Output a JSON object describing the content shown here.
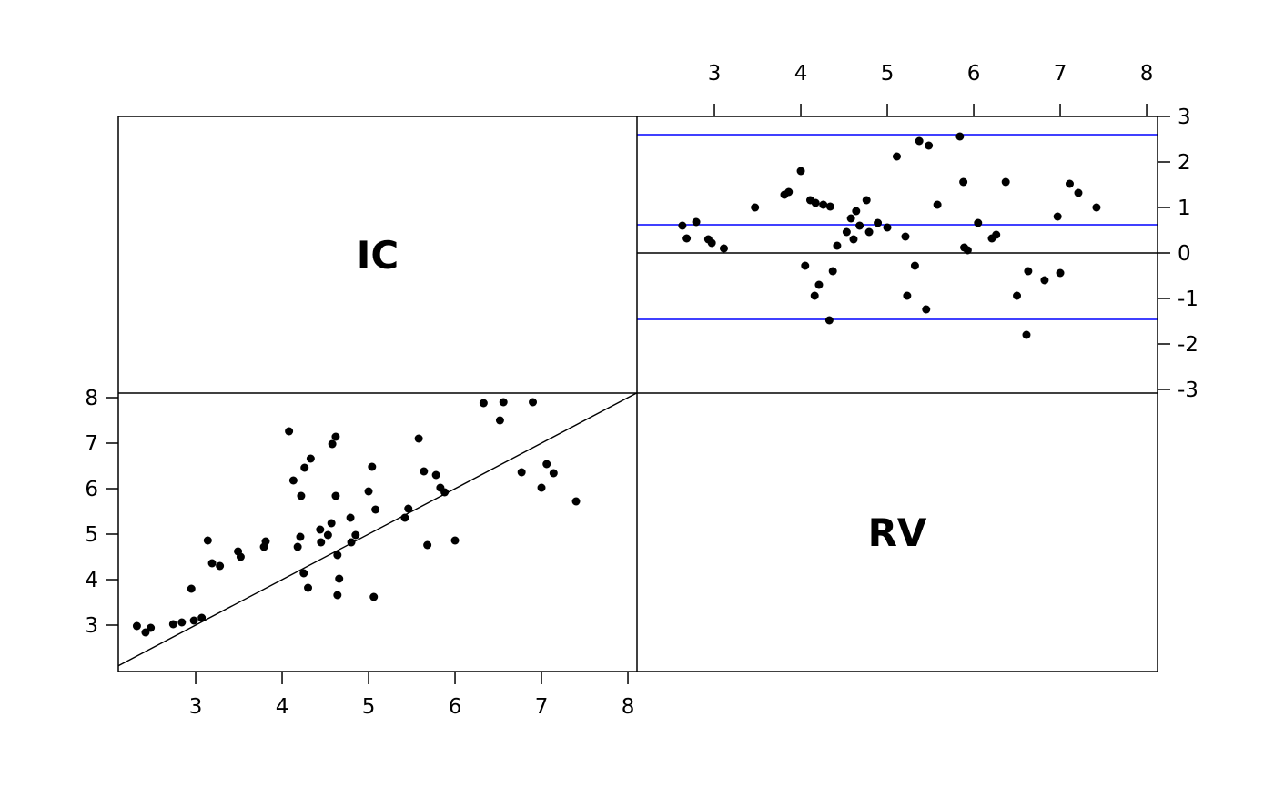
{
  "chart_data": {
    "type": "scatter",
    "layout": "pairs-matrix-2x2",
    "variables": [
      "IC",
      "RV"
    ],
    "point_color": "#000000",
    "accent_blue": "#0000ff",
    "panels": [
      {
        "kind": "label",
        "label": "IC",
        "row": 0,
        "col": 0
      },
      {
        "kind": "scatter",
        "name": "difference-plot",
        "row": 0,
        "col": 1,
        "xlim": [
          2.105,
          8.126
        ],
        "ylim": [
          -3.08,
          3.0
        ],
        "x_ticks": [
          3,
          4,
          5,
          6,
          7,
          8
        ],
        "x_axis_side": "top",
        "y_ticks": [
          3,
          2,
          1,
          0,
          -1,
          -2,
          -3
        ],
        "y_axis_side": "right",
        "grid": false,
        "hlines": [
          {
            "y": 0,
            "color": "#000000",
            "name": "zero-line"
          },
          {
            "y": 2.6,
            "color": "#0000ff",
            "name": "upper-limit-line"
          },
          {
            "y": 0.62,
            "color": "#0000ff",
            "name": "mean-line"
          },
          {
            "y": -1.46,
            "color": "#0000ff",
            "name": "lower-limit-line"
          }
        ],
        "points": [
          [
            2.63,
            0.6
          ],
          [
            2.68,
            0.32
          ],
          [
            2.79,
            0.68
          ],
          [
            2.93,
            0.3
          ],
          [
            2.97,
            0.22
          ],
          [
            3.11,
            0.1
          ],
          [
            3.47,
            1.0
          ],
          [
            3.81,
            1.28
          ],
          [
            3.86,
            1.34
          ],
          [
            4.0,
            1.8
          ],
          [
            4.05,
            -0.28
          ],
          [
            4.16,
            -0.94
          ],
          [
            4.21,
            -0.7
          ],
          [
            4.11,
            1.16
          ],
          [
            4.17,
            1.1
          ],
          [
            4.26,
            1.06
          ],
          [
            4.34,
            1.02
          ],
          [
            4.37,
            -0.4
          ],
          [
            4.33,
            -1.48
          ],
          [
            4.42,
            0.16
          ],
          [
            4.53,
            0.46
          ],
          [
            4.58,
            0.76
          ],
          [
            4.61,
            0.3
          ],
          [
            4.64,
            0.92
          ],
          [
            4.68,
            0.6
          ],
          [
            4.76,
            1.16
          ],
          [
            4.79,
            0.46
          ],
          [
            4.89,
            0.66
          ],
          [
            5.0,
            0.56
          ],
          [
            5.11,
            2.12
          ],
          [
            5.21,
            0.36
          ],
          [
            5.23,
            -0.94
          ],
          [
            5.32,
            -0.28
          ],
          [
            5.37,
            2.46
          ],
          [
            5.45,
            -1.24
          ],
          [
            5.48,
            2.36
          ],
          [
            5.58,
            1.06
          ],
          [
            5.84,
            2.56
          ],
          [
            5.88,
            1.56
          ],
          [
            5.89,
            0.12
          ],
          [
            5.93,
            0.06
          ],
          [
            6.05,
            0.66
          ],
          [
            6.21,
            0.32
          ],
          [
            6.26,
            0.4
          ],
          [
            6.37,
            1.56
          ],
          [
            6.5,
            -0.94
          ],
          [
            6.61,
            -1.8
          ],
          [
            6.63,
            -0.4
          ],
          [
            6.82,
            -0.6
          ],
          [
            6.97,
            0.8
          ],
          [
            7.0,
            -0.44
          ],
          [
            7.11,
            1.52
          ],
          [
            7.21,
            1.32
          ],
          [
            7.42,
            1.0
          ]
        ]
      },
      {
        "kind": "scatter",
        "name": "ic-vs-rv-scatter",
        "row": 1,
        "col": 0,
        "xlim": [
          2.105,
          8.105
        ],
        "ylim": [
          1.98,
          8.1
        ],
        "x_ticks": [
          3,
          4,
          5,
          6,
          7,
          8
        ],
        "x_axis_side": "bottom",
        "y_ticks": [
          8,
          7,
          6,
          5,
          4,
          3
        ],
        "y_axis_side": "left",
        "grid": false,
        "abline": {
          "intercept": 0,
          "slope": 1,
          "color": "#000000",
          "name": "identity-line"
        },
        "points": [
          [
            2.32,
            2.98
          ],
          [
            2.42,
            2.84
          ],
          [
            2.48,
            2.94
          ],
          [
            2.74,
            3.02
          ],
          [
            2.84,
            3.06
          ],
          [
            2.98,
            3.1
          ],
          [
            3.07,
            3.16
          ],
          [
            2.95,
            3.8
          ],
          [
            3.14,
            4.86
          ],
          [
            3.19,
            4.36
          ],
          [
            3.28,
            4.3
          ],
          [
            3.49,
            4.62
          ],
          [
            3.52,
            4.5
          ],
          [
            3.79,
            4.72
          ],
          [
            3.81,
            4.84
          ],
          [
            4.08,
            7.26
          ],
          [
            4.13,
            6.18
          ],
          [
            4.22,
            5.84
          ],
          [
            4.26,
            6.46
          ],
          [
            4.33,
            6.66
          ],
          [
            4.21,
            4.94
          ],
          [
            4.18,
            4.72
          ],
          [
            4.25,
            4.14
          ],
          [
            4.3,
            3.82
          ],
          [
            4.44,
            5.1
          ],
          [
            4.45,
            4.82
          ],
          [
            4.53,
            4.98
          ],
          [
            4.57,
            5.24
          ],
          [
            4.58,
            6.98
          ],
          [
            4.62,
            7.14
          ],
          [
            4.62,
            5.84
          ],
          [
            4.64,
            4.54
          ],
          [
            4.66,
            4.02
          ],
          [
            4.64,
            3.66
          ],
          [
            4.79,
            5.36
          ],
          [
            4.8,
            4.82
          ],
          [
            4.85,
            4.98
          ],
          [
            5.0,
            5.94
          ],
          [
            5.04,
            6.48
          ],
          [
            5.08,
            5.54
          ],
          [
            5.06,
            3.62
          ],
          [
            5.42,
            5.36
          ],
          [
            5.46,
            5.56
          ],
          [
            5.58,
            7.1
          ],
          [
            5.64,
            6.38
          ],
          [
            5.68,
            4.76
          ],
          [
            5.78,
            6.3
          ],
          [
            5.83,
            6.02
          ],
          [
            5.88,
            5.92
          ],
          [
            6.0,
            4.86
          ],
          [
            6.33,
            7.88
          ],
          [
            6.52,
            7.5
          ],
          [
            6.56,
            7.9
          ],
          [
            6.77,
            6.36
          ],
          [
            6.9,
            7.9
          ],
          [
            7.0,
            6.02
          ],
          [
            7.06,
            6.54
          ],
          [
            7.14,
            6.34
          ],
          [
            7.4,
            5.72
          ]
        ]
      },
      {
        "kind": "label",
        "label": "RV",
        "row": 1,
        "col": 1
      }
    ]
  }
}
